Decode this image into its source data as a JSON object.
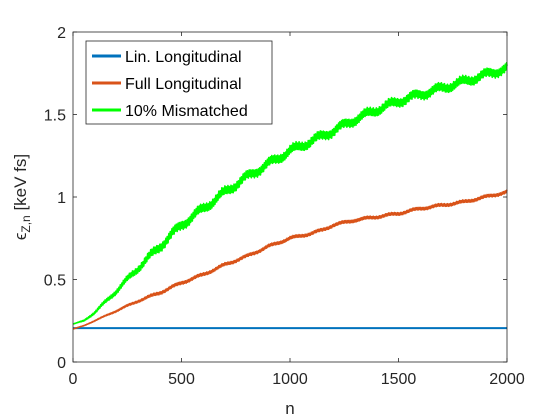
{
  "chart_data": {
    "type": "line",
    "xlabel": "n",
    "ylabel": {
      "base": "ϵ",
      "sub": "Z,n",
      "unit": " [keV fs]"
    },
    "xlim": [
      0,
      2000
    ],
    "ylim": [
      0,
      2
    ],
    "xticks": [
      0,
      500,
      1000,
      1500,
      2000
    ],
    "yticks": [
      0,
      0.5,
      1,
      1.5,
      2
    ],
    "xtick_labels": [
      "0",
      "500",
      "1000",
      "1500",
      "2000"
    ],
    "ytick_labels": [
      "0",
      "0.5",
      "1",
      "1.5",
      "2"
    ],
    "grid": false,
    "legend_position": "top-left",
    "series": [
      {
        "name": "Lin. Longitudinal",
        "color": "#0072BD",
        "x": [
          0,
          2000
        ],
        "y": [
          0.205,
          0.205
        ],
        "oscillation": 0
      },
      {
        "name": "Full Longitudinal",
        "color": "#D95319",
        "x": [
          0,
          50,
          100,
          200,
          300,
          400,
          500,
          600,
          700,
          800,
          900,
          1000,
          1100,
          1150,
          1200,
          1300,
          1400,
          1500,
          1600,
          1700,
          1800,
          1900,
          2000
        ],
        "y": [
          0.2,
          0.22,
          0.25,
          0.31,
          0.37,
          0.42,
          0.48,
          0.53,
          0.59,
          0.64,
          0.7,
          0.75,
          0.78,
          0.8,
          0.83,
          0.86,
          0.88,
          0.9,
          0.93,
          0.95,
          0.97,
          1.0,
          1.03
        ],
        "oscillation": 0.008
      },
      {
        "name": "10% Mismatched",
        "color": "#00FF00",
        "x": [
          0,
          50,
          100,
          200,
          300,
          400,
          500,
          600,
          700,
          800,
          900,
          1000,
          1100,
          1200,
          1300,
          1400,
          1500,
          1600,
          1700,
          1800,
          1900,
          2000
        ],
        "y": [
          0.23,
          0.25,
          0.3,
          0.43,
          0.57,
          0.7,
          0.83,
          0.93,
          1.03,
          1.12,
          1.2,
          1.28,
          1.34,
          1.4,
          1.47,
          1.53,
          1.58,
          1.62,
          1.66,
          1.7,
          1.74,
          1.78
        ],
        "oscillation": 0.025
      }
    ]
  }
}
